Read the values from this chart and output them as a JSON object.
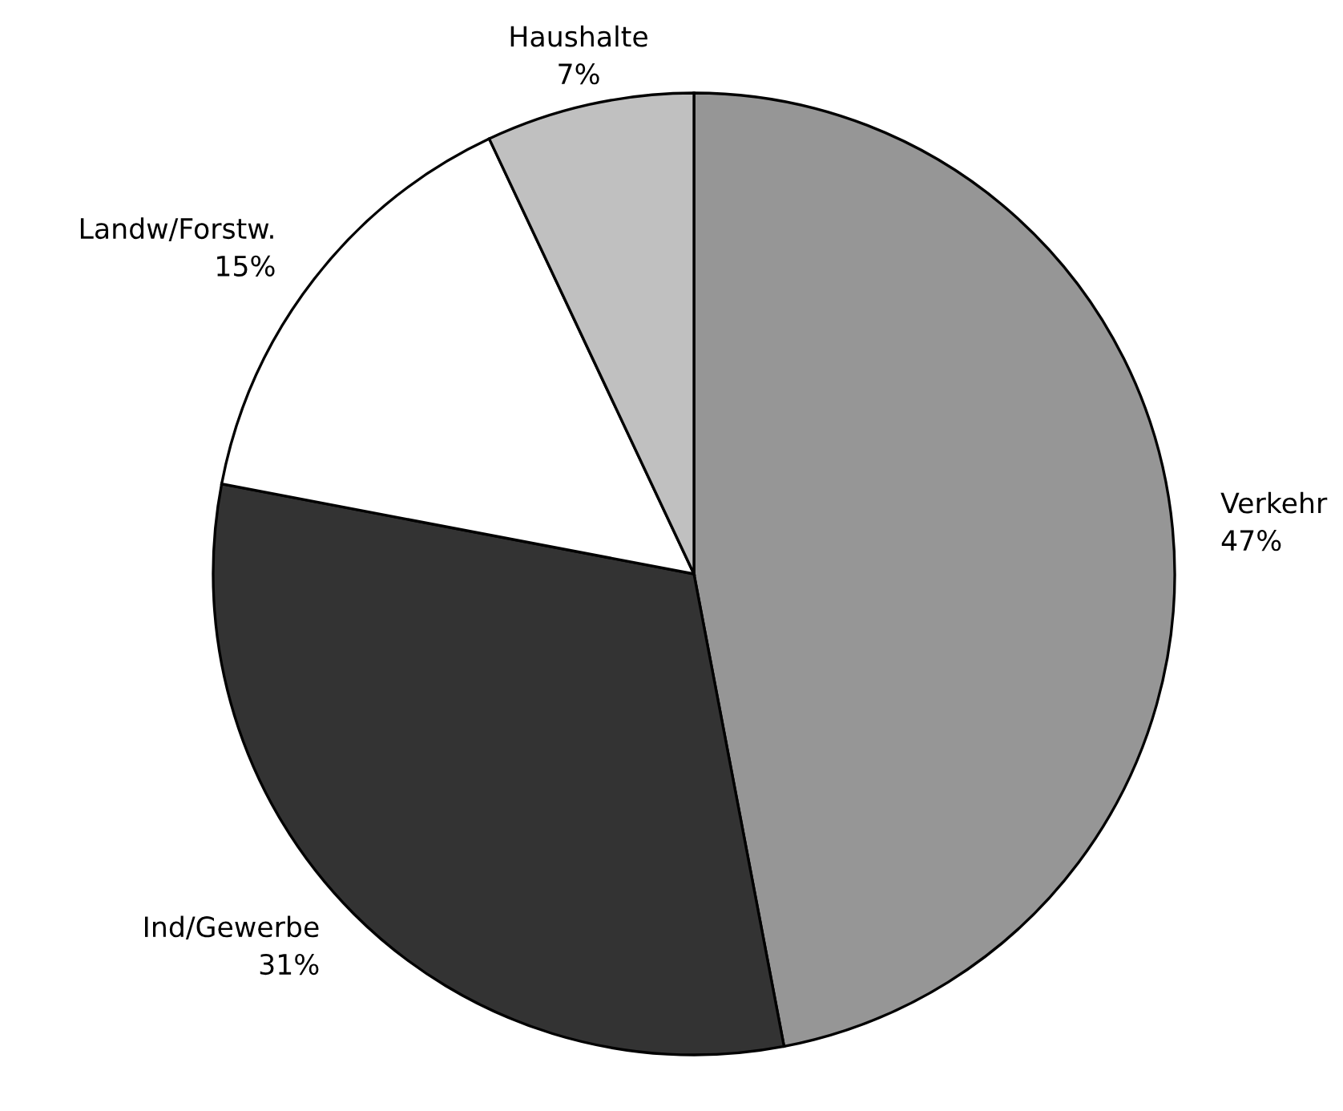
{
  "chart_data": {
    "type": "pie",
    "categories": [
      "Verkehr",
      "Ind/Gewerbe",
      "Landw/Forstw.",
      "Haushalte"
    ],
    "values": [
      47,
      31,
      15,
      7
    ],
    "colors": [
      "#969696",
      "#333333",
      "#ffffff",
      "#c0c0c0"
    ],
    "value_labels": [
      "47%",
      "31%",
      "15%",
      "7%"
    ]
  }
}
